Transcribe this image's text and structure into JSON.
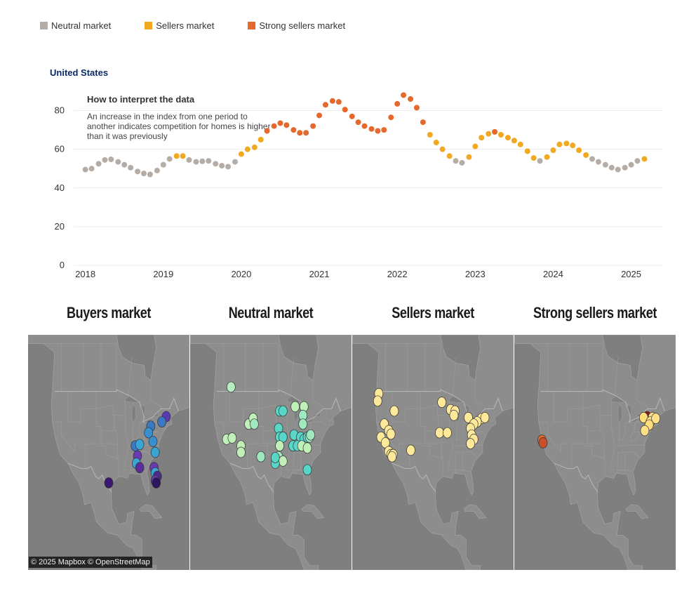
{
  "legend": {
    "items": [
      {
        "label": "Neutral market",
        "color": "#b5aca6"
      },
      {
        "label": "Sellers market",
        "color": "#f0a921"
      },
      {
        "label": "Strong sellers market",
        "color": "#e5692d"
      }
    ]
  },
  "chart_data": {
    "type": "scatter",
    "title": "United States",
    "ylim": [
      0,
      90
    ],
    "yticks": [
      0,
      20,
      40,
      60,
      80
    ],
    "xticks": [
      "2018",
      "2019",
      "2020",
      "2021",
      "2022",
      "2023",
      "2024",
      "2025"
    ],
    "xlim": [
      2017.85,
      2025.4
    ],
    "grid": true,
    "annotation": {
      "title": "How to interpret the data",
      "text_lines": [
        "An increase in the index from one period to",
        "another indicates competition for homes is higher",
        "than it was previously"
      ]
    },
    "categories": {
      "N": "Neutral market",
      "S": "Sellers market",
      "SS": "Strong sellers market"
    },
    "points": [
      {
        "x": 2018.0,
        "y": 49.5,
        "c": "N"
      },
      {
        "x": 2018.08,
        "y": 50.0,
        "c": "N"
      },
      {
        "x": 2018.17,
        "y": 52.5,
        "c": "N"
      },
      {
        "x": 2018.25,
        "y": 54.5,
        "c": "N"
      },
      {
        "x": 2018.33,
        "y": 54.8,
        "c": "N"
      },
      {
        "x": 2018.42,
        "y": 53.5,
        "c": "N"
      },
      {
        "x": 2018.5,
        "y": 52.0,
        "c": "N"
      },
      {
        "x": 2018.58,
        "y": 50.5,
        "c": "N"
      },
      {
        "x": 2018.67,
        "y": 48.5,
        "c": "N"
      },
      {
        "x": 2018.75,
        "y": 47.5,
        "c": "N"
      },
      {
        "x": 2018.83,
        "y": 47.0,
        "c": "N"
      },
      {
        "x": 2018.92,
        "y": 49.0,
        "c": "N"
      },
      {
        "x": 2019.0,
        "y": 52.0,
        "c": "N"
      },
      {
        "x": 2019.08,
        "y": 55.0,
        "c": "N"
      },
      {
        "x": 2019.17,
        "y": 56.5,
        "c": "S"
      },
      {
        "x": 2019.25,
        "y": 56.5,
        "c": "S"
      },
      {
        "x": 2019.33,
        "y": 54.5,
        "c": "N"
      },
      {
        "x": 2019.42,
        "y": 53.5,
        "c": "N"
      },
      {
        "x": 2019.5,
        "y": 53.8,
        "c": "N"
      },
      {
        "x": 2019.58,
        "y": 54.0,
        "c": "N"
      },
      {
        "x": 2019.67,
        "y": 52.5,
        "c": "N"
      },
      {
        "x": 2019.75,
        "y": 51.5,
        "c": "N"
      },
      {
        "x": 2019.83,
        "y": 51.0,
        "c": "N"
      },
      {
        "x": 2019.92,
        "y": 53.5,
        "c": "N"
      },
      {
        "x": 2020.0,
        "y": 57.5,
        "c": "S"
      },
      {
        "x": 2020.08,
        "y": 60.0,
        "c": "S"
      },
      {
        "x": 2020.17,
        "y": 61.0,
        "c": "S"
      },
      {
        "x": 2020.25,
        "y": 65.0,
        "c": "S"
      },
      {
        "x": 2020.33,
        "y": 69.5,
        "c": "SS"
      },
      {
        "x": 2020.42,
        "y": 72.0,
        "c": "SS"
      },
      {
        "x": 2020.5,
        "y": 73.5,
        "c": "SS"
      },
      {
        "x": 2020.58,
        "y": 72.5,
        "c": "SS"
      },
      {
        "x": 2020.67,
        "y": 70.0,
        "c": "SS"
      },
      {
        "x": 2020.75,
        "y": 68.5,
        "c": "SS"
      },
      {
        "x": 2020.83,
        "y": 68.5,
        "c": "SS"
      },
      {
        "x": 2020.92,
        "y": 72.0,
        "c": "SS"
      },
      {
        "x": 2021.0,
        "y": 77.5,
        "c": "SS"
      },
      {
        "x": 2021.08,
        "y": 83.0,
        "c": "SS"
      },
      {
        "x": 2021.17,
        "y": 85.0,
        "c": "SS"
      },
      {
        "x": 2021.25,
        "y": 84.5,
        "c": "SS"
      },
      {
        "x": 2021.33,
        "y": 80.5,
        "c": "SS"
      },
      {
        "x": 2021.42,
        "y": 77.0,
        "c": "SS"
      },
      {
        "x": 2021.5,
        "y": 74.0,
        "c": "SS"
      },
      {
        "x": 2021.58,
        "y": 72.0,
        "c": "SS"
      },
      {
        "x": 2021.67,
        "y": 70.5,
        "c": "SS"
      },
      {
        "x": 2021.75,
        "y": 69.5,
        "c": "SS"
      },
      {
        "x": 2021.83,
        "y": 70.0,
        "c": "SS"
      },
      {
        "x": 2021.92,
        "y": 76.5,
        "c": "SS"
      },
      {
        "x": 2022.0,
        "y": 83.5,
        "c": "SS"
      },
      {
        "x": 2022.08,
        "y": 88.0,
        "c": "SS"
      },
      {
        "x": 2022.17,
        "y": 86.0,
        "c": "SS"
      },
      {
        "x": 2022.25,
        "y": 81.5,
        "c": "SS"
      },
      {
        "x": 2022.33,
        "y": 74.0,
        "c": "SS"
      },
      {
        "x": 2022.42,
        "y": 67.5,
        "c": "S"
      },
      {
        "x": 2022.5,
        "y": 63.5,
        "c": "S"
      },
      {
        "x": 2022.58,
        "y": 60.0,
        "c": "S"
      },
      {
        "x": 2022.67,
        "y": 56.5,
        "c": "S"
      },
      {
        "x": 2022.75,
        "y": 54.0,
        "c": "N"
      },
      {
        "x": 2022.83,
        "y": 53.0,
        "c": "N"
      },
      {
        "x": 2022.92,
        "y": 56.0,
        "c": "S"
      },
      {
        "x": 2023.0,
        "y": 61.5,
        "c": "S"
      },
      {
        "x": 2023.08,
        "y": 66.0,
        "c": "S"
      },
      {
        "x": 2023.17,
        "y": 68.0,
        "c": "S"
      },
      {
        "x": 2023.25,
        "y": 69.0,
        "c": "SS"
      },
      {
        "x": 2023.33,
        "y": 67.5,
        "c": "S"
      },
      {
        "x": 2023.42,
        "y": 66.0,
        "c": "S"
      },
      {
        "x": 2023.5,
        "y": 64.5,
        "c": "S"
      },
      {
        "x": 2023.58,
        "y": 62.5,
        "c": "S"
      },
      {
        "x": 2023.67,
        "y": 59.0,
        "c": "S"
      },
      {
        "x": 2023.75,
        "y": 55.5,
        "c": "S"
      },
      {
        "x": 2023.83,
        "y": 54.0,
        "c": "N"
      },
      {
        "x": 2023.92,
        "y": 56.0,
        "c": "S"
      },
      {
        "x": 2024.0,
        "y": 59.5,
        "c": "S"
      },
      {
        "x": 2024.08,
        "y": 62.5,
        "c": "S"
      },
      {
        "x": 2024.17,
        "y": 63.0,
        "c": "S"
      },
      {
        "x": 2024.25,
        "y": 62.0,
        "c": "S"
      },
      {
        "x": 2024.33,
        "y": 59.5,
        "c": "S"
      },
      {
        "x": 2024.42,
        "y": 57.0,
        "c": "S"
      },
      {
        "x": 2024.5,
        "y": 55.0,
        "c": "N"
      },
      {
        "x": 2024.58,
        "y": 53.5,
        "c": "N"
      },
      {
        "x": 2024.67,
        "y": 52.0,
        "c": "N"
      },
      {
        "x": 2024.75,
        "y": 50.5,
        "c": "N"
      },
      {
        "x": 2024.83,
        "y": 49.5,
        "c": "N"
      },
      {
        "x": 2024.92,
        "y": 50.5,
        "c": "N"
      },
      {
        "x": 2025.0,
        "y": 52.0,
        "c": "N"
      },
      {
        "x": 2025.08,
        "y": 54.0,
        "c": "N"
      },
      {
        "x": 2025.17,
        "y": 55.0,
        "c": "S"
      }
    ]
  },
  "maps": {
    "panels": [
      {
        "title": "Buyers market",
        "dots": [
          {
            "lon": -72.5,
            "lat": 43.2,
            "color": "#5b3bb5"
          },
          {
            "lon": -74.5,
            "lat": 42.0,
            "color": "#3a78c4"
          },
          {
            "lon": -79.5,
            "lat": 41.0,
            "color": "#3a78c4"
          },
          {
            "lon": -80.5,
            "lat": 39.5,
            "color": "#3a8fd0"
          },
          {
            "lon": -78.5,
            "lat": 37.5,
            "color": "#3a8fd0"
          },
          {
            "lon": -86.5,
            "lat": 36.5,
            "color": "#3a78c4"
          },
          {
            "lon": -84.5,
            "lat": 36.8,
            "color": "#3aa5d4"
          },
          {
            "lon": -77.5,
            "lat": 35.0,
            "color": "#3aa5d4"
          },
          {
            "lon": -85.5,
            "lat": 34.2,
            "color": "#6a3bb0"
          },
          {
            "lon": -86.0,
            "lat": 32.5,
            "color": "#3aa5d4"
          },
          {
            "lon": -84.5,
            "lat": 31.5,
            "color": "#5b2c9a"
          },
          {
            "lon": -78.0,
            "lat": 31.5,
            "color": "#6a3bb0"
          },
          {
            "lon": -77.5,
            "lat": 30.3,
            "color": "#3aa5d4"
          },
          {
            "lon": -76.5,
            "lat": 29.5,
            "color": "#4a2b8a"
          },
          {
            "lon": -77.5,
            "lat": 28.5,
            "color": "#6a3bb0"
          },
          {
            "lon": -77.0,
            "lat": 28.0,
            "color": "#2e1660"
          },
          {
            "lon": -98.5,
            "lat": 28.0,
            "color": "#3a1870"
          }
        ]
      },
      {
        "title": "Neutral market",
        "dots": [
          {
            "lon": -116.5,
            "lat": 50.0,
            "color": "#b8edc0"
          },
          {
            "lon": -108.5,
            "lat": 41.5,
            "color": "#c0f0b8"
          },
          {
            "lon": -106.5,
            "lat": 42.8,
            "color": "#c0f0b8"
          },
          {
            "lon": -94.5,
            "lat": 44.5,
            "color": "#58d6c8"
          },
          {
            "lon": -93.0,
            "lat": 44.5,
            "color": "#58d6c8"
          },
          {
            "lon": -87.5,
            "lat": 45.5,
            "color": "#c0f0b8"
          },
          {
            "lon": -83.5,
            "lat": 45.5,
            "color": "#c0f0b8"
          },
          {
            "lon": -84.0,
            "lat": 43.5,
            "color": "#a0e8c0"
          },
          {
            "lon": -84.0,
            "lat": 41.5,
            "color": "#a0e8c0"
          },
          {
            "lon": -106.0,
            "lat": 41.5,
            "color": "#a0e8c0"
          },
          {
            "lon": -118.5,
            "lat": 38.0,
            "color": "#c0f0b8"
          },
          {
            "lon": -116.0,
            "lat": 38.3,
            "color": "#c0f0b8"
          },
          {
            "lon": -95.0,
            "lat": 40.5,
            "color": "#58d6c8"
          },
          {
            "lon": -94.5,
            "lat": 38.5,
            "color": "#58d6c8"
          },
          {
            "lon": -93.0,
            "lat": 38.5,
            "color": "#58d6c8"
          },
          {
            "lon": -88.0,
            "lat": 39.0,
            "color": "#58d6c8"
          },
          {
            "lon": -85.0,
            "lat": 38.5,
            "color": "#58d6c8"
          },
          {
            "lon": -83.5,
            "lat": 38.0,
            "color": "#58d6c8"
          },
          {
            "lon": -82.0,
            "lat": 38.5,
            "color": "#58d6c8"
          },
          {
            "lon": -81.0,
            "lat": 38.5,
            "color": "#a0e8c0"
          },
          {
            "lon": -80.5,
            "lat": 39.0,
            "color": "#a0e8c0"
          },
          {
            "lon": -112.0,
            "lat": 36.5,
            "color": "#c0f0b8"
          },
          {
            "lon": -94.5,
            "lat": 36.5,
            "color": "#c0f0b8"
          },
          {
            "lon": -88.5,
            "lat": 36.5,
            "color": "#58d6c8"
          },
          {
            "lon": -86.5,
            "lat": 36.5,
            "color": "#58d6c8"
          },
          {
            "lon": -84.5,
            "lat": 36.5,
            "color": "#c0f0b8"
          },
          {
            "lon": -82.0,
            "lat": 36.0,
            "color": "#c0f0b8"
          },
          {
            "lon": -112.0,
            "lat": 35.0,
            "color": "#c0f0b8"
          },
          {
            "lon": -103.0,
            "lat": 34.0,
            "color": "#a0e8c0"
          },
          {
            "lon": -95.0,
            "lat": 34.0,
            "color": "#a0e8c0"
          },
          {
            "lon": -93.0,
            "lat": 33.0,
            "color": "#c0f0b8"
          },
          {
            "lon": -96.5,
            "lat": 32.5,
            "color": "#58d6c8"
          },
          {
            "lon": -96.5,
            "lat": 33.8,
            "color": "#58d6c8"
          },
          {
            "lon": -82.0,
            "lat": 31.0,
            "color": "#58d6c8"
          }
        ]
      },
      {
        "title": "Sellers market",
        "dots": [
          {
            "lon": -123.0,
            "lat": 48.5,
            "color": "#fee89a"
          },
          {
            "lon": -123.5,
            "lat": 46.8,
            "color": "#fee89a"
          },
          {
            "lon": -116.0,
            "lat": 44.5,
            "color": "#fee89a"
          },
          {
            "lon": -120.5,
            "lat": 41.5,
            "color": "#fee89a"
          },
          {
            "lon": -118.5,
            "lat": 40.0,
            "color": "#fee89a"
          },
          {
            "lon": -117.5,
            "lat": 39.2,
            "color": "#fee89a"
          },
          {
            "lon": -122.0,
            "lat": 38.5,
            "color": "#fee89a"
          },
          {
            "lon": -120.0,
            "lat": 37.2,
            "color": "#fee89a"
          },
          {
            "lon": -118.5,
            "lat": 35.2,
            "color": "#fee89a"
          },
          {
            "lon": -117.5,
            "lat": 34.5,
            "color": "#fee89a"
          },
          {
            "lon": -116.5,
            "lat": 34.5,
            "color": "#fee89a"
          },
          {
            "lon": -117.0,
            "lat": 34.0,
            "color": "#fee89a"
          },
          {
            "lon": -108.5,
            "lat": 35.5,
            "color": "#fee89a"
          },
          {
            "lon": -94.5,
            "lat": 46.5,
            "color": "#fee89a"
          },
          {
            "lon": -90.5,
            "lat": 44.8,
            "color": "#fee89a"
          },
          {
            "lon": -88.5,
            "lat": 44.5,
            "color": "#fee89a"
          },
          {
            "lon": -89.0,
            "lat": 43.5,
            "color": "#fee89a"
          },
          {
            "lon": -82.5,
            "lat": 43.0,
            "color": "#fee89a"
          },
          {
            "lon": -76.5,
            "lat": 42.8,
            "color": "#fee89a"
          },
          {
            "lon": -75.0,
            "lat": 43.0,
            "color": "#fee89a"
          },
          {
            "lon": -78.5,
            "lat": 42.0,
            "color": "#fee89a"
          },
          {
            "lon": -80.0,
            "lat": 41.5,
            "color": "#fee89a"
          },
          {
            "lon": -81.5,
            "lat": 40.5,
            "color": "#fee89a"
          },
          {
            "lon": -95.5,
            "lat": 39.5,
            "color": "#fee89a"
          },
          {
            "lon": -92.0,
            "lat": 39.5,
            "color": "#fee89a"
          },
          {
            "lon": -81.0,
            "lat": 39.0,
            "color": "#fee89a"
          },
          {
            "lon": -80.0,
            "lat": 38.0,
            "color": "#fee89a"
          },
          {
            "lon": -81.5,
            "lat": 37.0,
            "color": "#fee89a"
          }
        ]
      },
      {
        "title": "Strong sellers market",
        "dots": [
          {
            "lon": -122.5,
            "lat": 37.8,
            "color": "#e5692d"
          },
          {
            "lon": -122.0,
            "lat": 37.2,
            "color": "#c8502a"
          },
          {
            "lon": -75.0,
            "lat": 43.2,
            "color": "#8a1a10"
          },
          {
            "lon": -72.5,
            "lat": 43.0,
            "color": "#fee089"
          },
          {
            "lon": -76.5,
            "lat": 43.0,
            "color": "#fedd7a"
          },
          {
            "lon": -73.5,
            "lat": 42.0,
            "color": "#fee089"
          },
          {
            "lon": -71.0,
            "lat": 42.8,
            "color": "#fee089"
          },
          {
            "lon": -74.0,
            "lat": 41.3,
            "color": "#fedd7a"
          },
          {
            "lon": -76.0,
            "lat": 40.0,
            "color": "#fee089"
          }
        ]
      }
    ]
  },
  "attribution": "© 2025 Mapbox © OpenStreetMap"
}
